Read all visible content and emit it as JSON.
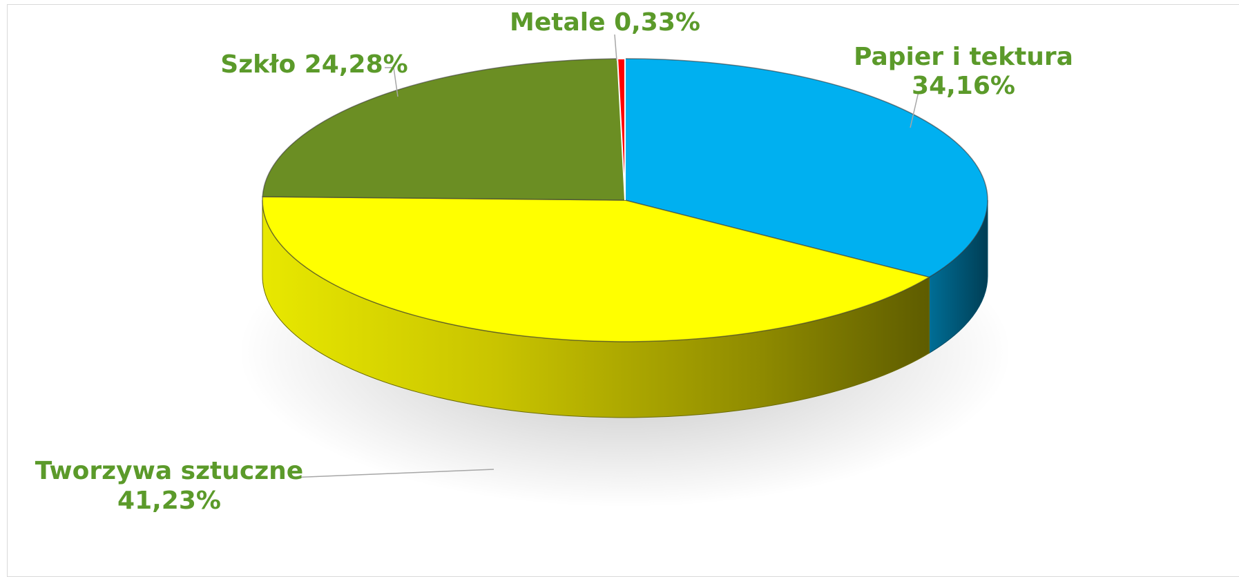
{
  "chart_data": {
    "type": "pie",
    "style": "3d",
    "unit": "%",
    "slices": [
      {
        "name": "Papier i tektura",
        "value": 34.16,
        "label_lines": [
          "Papier i tektura",
          "34,16%"
        ],
        "color": "#00b0f0",
        "side_dark": "#004c66"
      },
      {
        "name": "Tworzywa sztuczne",
        "value": 41.23,
        "label_lines": [
          "Tworzywa sztuczne",
          "41,23%"
        ],
        "color": "#ffff00",
        "side_dark": "#6b6b00",
        "side_light": "#e6e600"
      },
      {
        "name": "Szkło",
        "value": 24.28,
        "label_lines": [
          "Szkło 24,28%"
        ],
        "color": "#6b8e23",
        "side_dark": "#3f5513"
      },
      {
        "name": "Metale",
        "value": 0.33,
        "label_lines": [
          "Metale 0,33%"
        ],
        "color": "#ff0000",
        "side_dark": "#8b0000"
      }
    ],
    "legend": "none",
    "label_color": "#5b9a2a"
  }
}
